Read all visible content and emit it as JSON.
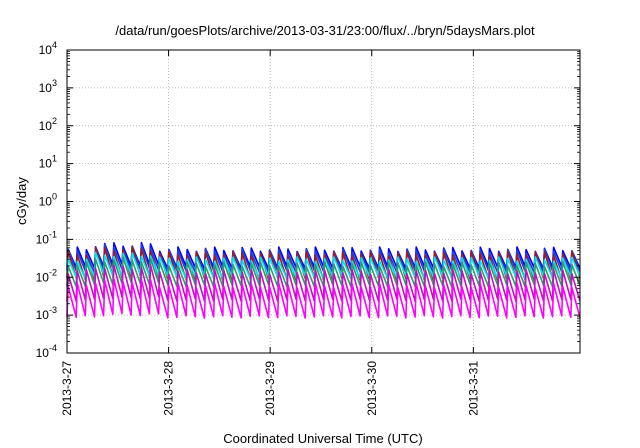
{
  "chart_data": {
    "type": "line",
    "title": "/data/run/goesPlots/archive/2013-03-31/23:00/flux/../bryn/5daysMars.plot",
    "xlabel": "Coordinated Universal Time (UTC)",
    "ylabel": "cGy/day",
    "y_scale": "log",
    "ylim": [
      0.0001,
      10000
    ],
    "y_ticks": [
      {
        "base": "10",
        "exp": "-4"
      },
      {
        "base": "10",
        "exp": "-3"
      },
      {
        "base": "10",
        "exp": "-2"
      },
      {
        "base": "10",
        "exp": "-1"
      },
      {
        "base": "10",
        "exp": "0"
      },
      {
        "base": "10",
        "exp": "1"
      },
      {
        "base": "10",
        "exp": "2"
      },
      {
        "base": "10",
        "exp": "3"
      },
      {
        "base": "10",
        "exp": "4"
      }
    ],
    "x_ticks": [
      "2013-3-27",
      "2013-3-28",
      "2013-3-29",
      "2013-3-30",
      "2013-3-31"
    ],
    "xlim_days": [
      0,
      5.05
    ],
    "grid": true,
    "legend": "none",
    "cycles_per_day": 11,
    "series": [
      {
        "color": "#0000ff",
        "peak": 0.055,
        "trough": 0.018
      },
      {
        "color": "#1f3fe0",
        "peak": 0.048,
        "trough": 0.014
      },
      {
        "color": "#9a1f1f",
        "peak": 0.042,
        "trough": 0.009
      },
      {
        "color": "#00e5e5",
        "peak": 0.03,
        "trough": 0.01
      },
      {
        "color": "#2a9d6a",
        "peak": 0.022,
        "trough": 0.006
      },
      {
        "color": "#c010c0",
        "peak": 0.014,
        "trough": 0.0025
      },
      {
        "color": "#ff00ff",
        "peak": 0.006,
        "trough": 0.0009
      }
    ]
  }
}
